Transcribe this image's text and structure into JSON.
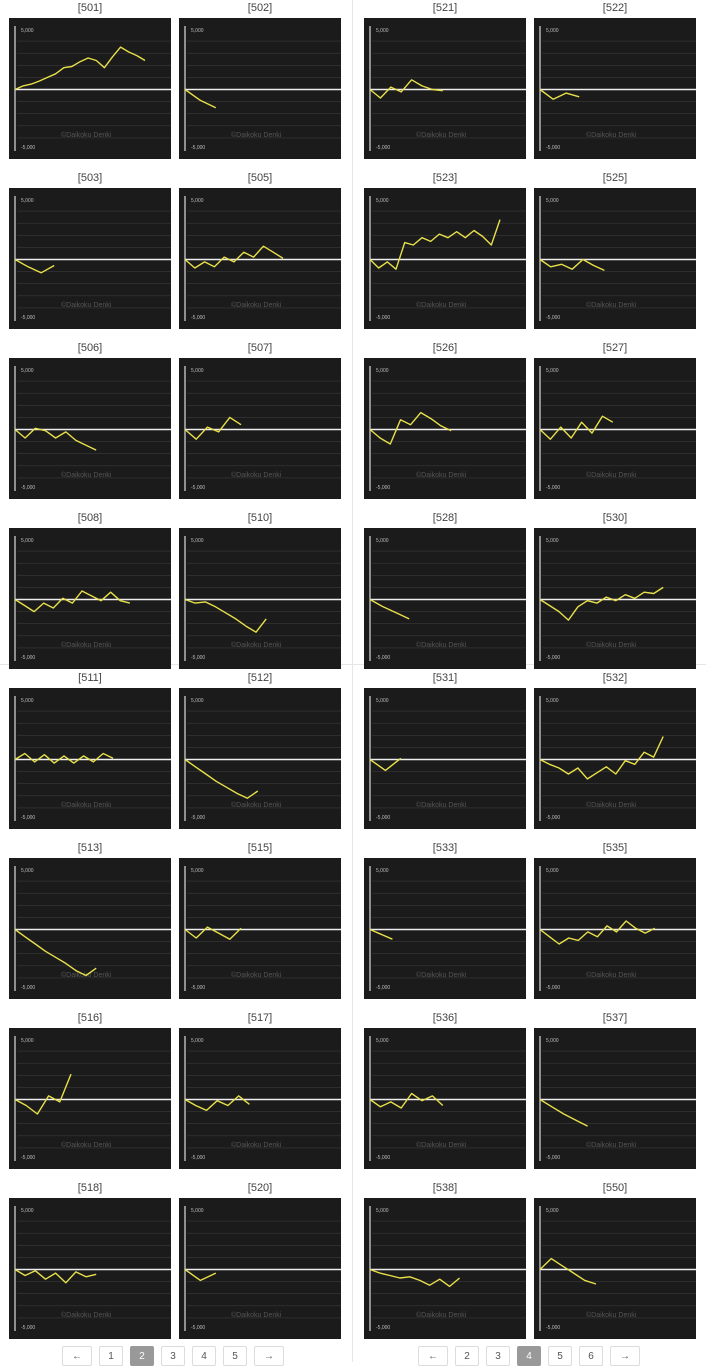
{
  "graph_labels": {
    "top": "5,000",
    "bottom": "-5,000",
    "watermark": "©Daikoku Denki"
  },
  "colors": {
    "line": "#e8e04a",
    "graph_bg": "#1b1b1b",
    "zero_line": "#eeeeee",
    "grid": "#3a3a3a"
  },
  "machines": [
    {
      "number": "[501]",
      "points": [
        0,
        300,
        450,
        700,
        1000,
        1300,
        1800,
        1900,
        2300,
        2600,
        2400,
        1800,
        2700,
        3500,
        3100,
        2800,
        2400
      ]
    },
    {
      "number": "[502]",
      "points": [
        0,
        -900,
        -1500
      ]
    },
    {
      "number": "[503]",
      "points": [
        0,
        -600,
        -1100,
        -500
      ]
    },
    {
      "number": "[505]",
      "points": [
        0,
        -700,
        -200,
        -600,
        200,
        -200,
        600,
        200,
        1100,
        600,
        100
      ]
    },
    {
      "number": "[506]",
      "points": [
        0,
        -700,
        100,
        -100,
        -700,
        -200,
        -900,
        -1300,
        -1700
      ]
    },
    {
      "number": "[507]",
      "points": [
        0,
        -800,
        200,
        -200,
        1000,
        400
      ]
    },
    {
      "number": "[508]",
      "points": [
        0,
        -500,
        -1000,
        -300,
        -700,
        100,
        -300,
        700,
        300,
        -100,
        600,
        -100,
        -300
      ]
    },
    {
      "number": "[510]",
      "points": [
        0,
        -300,
        -200,
        -600,
        -1100,
        -1600,
        -2200,
        -2700,
        -1600
      ]
    },
    {
      "number": "[511]",
      "points": [
        0,
        500,
        -200,
        400,
        -300,
        300,
        -300,
        300,
        -200,
        500,
        100
      ]
    },
    {
      "number": "[512]",
      "points": [
        0,
        -600,
        -1200,
        -1800,
        -2300,
        -2800,
        -3200,
        -2600
      ]
    },
    {
      "number": "[513]",
      "points": [
        0,
        -600,
        -1200,
        -1800,
        -2300,
        -2800,
        -3400,
        -3800,
        -3200
      ]
    },
    {
      "number": "[515]",
      "points": [
        0,
        -700,
        200,
        -300,
        -800,
        100
      ]
    },
    {
      "number": "[516]",
      "points": [
        0,
        -500,
        -1200,
        300,
        -200,
        2100
      ]
    },
    {
      "number": "[517]",
      "points": [
        0,
        -500,
        -900,
        -100,
        -500,
        300,
        -400
      ]
    },
    {
      "number": "[518]",
      "points": [
        0,
        -500,
        -100,
        -800,
        -300,
        -1100,
        -200,
        -600,
        -400
      ]
    },
    {
      "number": "[520]",
      "points": [
        0,
        -900,
        -300
      ]
    },
    {
      "number": "[521]",
      "points": [
        0,
        -700,
        200,
        -200,
        800,
        300,
        0,
        -100
      ]
    },
    {
      "number": "[522]",
      "points": [
        0,
        -800,
        -300,
        -600
      ]
    },
    {
      "number": "[523]",
      "points": [
        0,
        -700,
        -200,
        -800,
        1400,
        1200,
        1800,
        1500,
        2100,
        1800,
        2300,
        1800,
        2400,
        1900,
        1200,
        3300
      ]
    },
    {
      "number": "[525]",
      "points": [
        0,
        -600,
        -400,
        -800,
        0,
        -500,
        -900
      ]
    },
    {
      "number": "[526]",
      "points": [
        0,
        -700,
        -1200,
        800,
        400,
        1400,
        900,
        300,
        -100
      ]
    },
    {
      "number": "[527]",
      "points": [
        0,
        -800,
        200,
        -700,
        600,
        -300,
        1100,
        600
      ]
    },
    {
      "number": "[528]",
      "points": [
        0,
        -600,
        -1100,
        -1600
      ]
    },
    {
      "number": "[530]",
      "points": [
        0,
        -500,
        -1000,
        -1700,
        -600,
        -100,
        -300,
        200,
        -100,
        400,
        100,
        600,
        500,
        1000
      ]
    },
    {
      "number": "[531]",
      "points": [
        0,
        -900,
        100
      ]
    },
    {
      "number": "[532]",
      "points": [
        0,
        -400,
        -700,
        -1200,
        -700,
        -1600,
        -1100,
        -600,
        -1200,
        -100,
        -400,
        600,
        200,
        1900
      ]
    },
    {
      "number": "[533]",
      "points": [
        0,
        -800
      ]
    },
    {
      "number": "[535]",
      "points": [
        0,
        -600,
        -1200,
        -700,
        -900,
        -200,
        -600,
        300,
        -200,
        700,
        100,
        -300,
        100
      ]
    },
    {
      "number": "[536]",
      "points": [
        0,
        -600,
        -200,
        -700,
        500,
        -100,
        300,
        -500
      ]
    },
    {
      "number": "[537]",
      "points": [
        0,
        -600,
        -1200,
        -1700,
        -2200
      ]
    },
    {
      "number": "[538]",
      "points": [
        0,
        -300,
        -500,
        -700,
        -600,
        -900,
        -1300,
        -800,
        -1400,
        -700
      ]
    },
    {
      "number": "[550]",
      "points": [
        0,
        900,
        300,
        -300,
        -900,
        -1200
      ]
    }
  ],
  "pager_left": [
    "←",
    "1",
    "2",
    "3",
    "4",
    "5",
    "→"
  ],
  "pager_right": [
    "←",
    "2",
    "3",
    "4",
    "5",
    "6",
    "→"
  ],
  "current_page_left": "2",
  "current_page_right": "4"
}
